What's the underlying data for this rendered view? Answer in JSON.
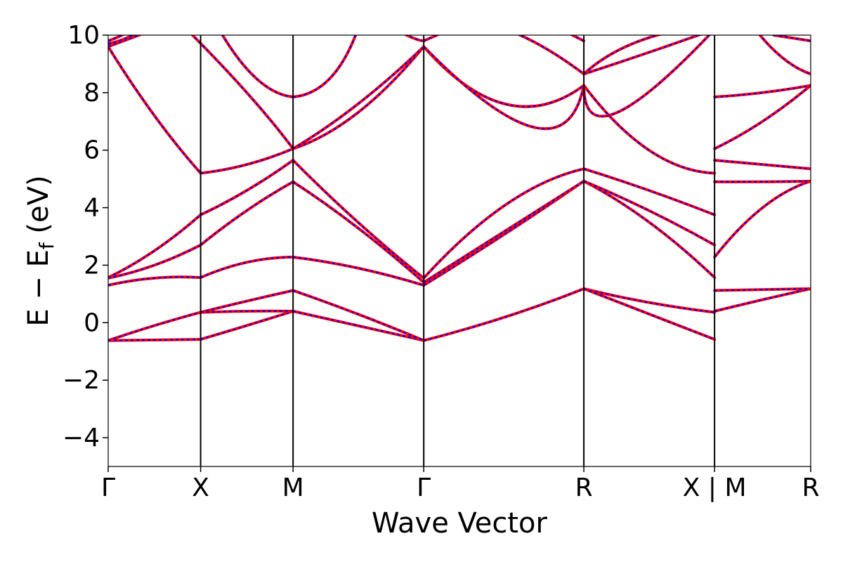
{
  "chart_data": {
    "type": "line",
    "xlabel": "Wave Vector",
    "ylabel": "E − E",
    "ylabel_subscript": "f",
    "ylabel_unit": " (eV)",
    "ylim": [
      -5,
      10
    ],
    "yticks": [
      -4,
      -2,
      0,
      2,
      4,
      6,
      8,
      10
    ],
    "ytick_labels": [
      "−4",
      "−2",
      "0",
      "2",
      "4",
      "6",
      "8",
      "10"
    ],
    "xlim": [
      0,
      7.6
    ],
    "kpoints": [
      {
        "label": "Γ",
        "x": 0.0
      },
      {
        "label": "X",
        "x": 1.0
      },
      {
        "label": "M",
        "x": 2.0
      },
      {
        "label": "Γ",
        "x": 3.414
      },
      {
        "label": "R",
        "x": 5.146
      },
      {
        "label": "X | M",
        "x": 6.56
      },
      {
        "label": "R",
        "x": 7.6
      }
    ],
    "grid": false,
    "colors": {
      "band_solid": "#ff0000",
      "band_dashed": "#0000ff",
      "axis": "#000000"
    },
    "series_style": "each band drawn as solid red line overlaid with dashed blue line",
    "bands": [
      {
        "segment": "Γ-X",
        "points": [
          [
            0,
            -0.62
          ],
          [
            0.5,
            -0.6
          ],
          [
            1.0,
            -0.58
          ]
        ]
      },
      {
        "segment": "Γ-X",
        "points": [
          [
            0,
            -0.62
          ],
          [
            0.5,
            -0.1
          ],
          [
            1.0,
            0.36
          ]
        ]
      },
      {
        "segment": "Γ-X",
        "points": [
          [
            0,
            1.3
          ],
          [
            0.5,
            1.55
          ],
          [
            1.0,
            1.57
          ]
        ]
      },
      {
        "segment": "Γ-X",
        "points": [
          [
            0,
            1.55
          ],
          [
            0.5,
            2.0
          ],
          [
            1.0,
            2.7
          ]
        ]
      },
      {
        "segment": "Γ-X",
        "points": [
          [
            0,
            1.57
          ],
          [
            0.5,
            2.5
          ],
          [
            1.0,
            3.75
          ]
        ]
      },
      {
        "segment": "Γ-X",
        "points": [
          [
            0,
            9.6
          ],
          [
            0.5,
            7.2
          ],
          [
            1.0,
            5.2
          ]
        ]
      },
      {
        "segment": "Γ-X",
        "points": [
          [
            0,
            9.6
          ],
          [
            0.25,
            9.9
          ],
          [
            0.5,
            10.2
          ]
        ]
      },
      {
        "segment": "Γ-X",
        "points": [
          [
            0,
            9.7
          ],
          [
            0.2,
            9.9
          ],
          [
            0.35,
            10.2
          ]
        ]
      },
      {
        "segment": "Γ-X",
        "points": [
          [
            0,
            9.8
          ],
          [
            0.15,
            10.0
          ],
          [
            0.25,
            10.2
          ]
        ]
      },
      {
        "segment": "X-M",
        "points": [
          [
            1.0,
            -0.58
          ],
          [
            1.5,
            -0.1
          ],
          [
            2.0,
            0.4
          ]
        ]
      },
      {
        "segment": "X-M",
        "points": [
          [
            1.0,
            0.36
          ],
          [
            1.5,
            0.4
          ],
          [
            2.0,
            0.4
          ]
        ]
      },
      {
        "segment": "X-M",
        "points": [
          [
            1.0,
            0.36
          ],
          [
            1.5,
            0.75
          ],
          [
            2.0,
            1.12
          ]
        ]
      },
      {
        "segment": "X-M",
        "points": [
          [
            1.0,
            1.57
          ],
          [
            1.5,
            2.1
          ],
          [
            2.0,
            2.28
          ]
        ]
      },
      {
        "segment": "X-M",
        "points": [
          [
            1.0,
            2.7
          ],
          [
            1.5,
            3.9
          ],
          [
            2.0,
            4.9
          ]
        ]
      },
      {
        "segment": "X-M",
        "points": [
          [
            1.0,
            3.75
          ],
          [
            1.5,
            4.6
          ],
          [
            2.0,
            5.65
          ]
        ]
      },
      {
        "segment": "X-M",
        "points": [
          [
            1.0,
            5.2
          ],
          [
            1.5,
            5.5
          ],
          [
            2.0,
            6.05
          ]
        ]
      },
      {
        "segment": "X-M",
        "points": [
          [
            0.85,
            10.2
          ],
          [
            1.5,
            8.0
          ],
          [
            2.0,
            6.05
          ]
        ]
      },
      {
        "segment": "X-M",
        "points": [
          [
            1.2,
            10.2
          ],
          [
            1.6,
            8.5
          ],
          [
            2.0,
            7.85
          ]
        ]
      },
      {
        "segment": "X-M",
        "points": [
          [
            2.0,
            7.85
          ],
          [
            2.4,
            8.5
          ],
          [
            2.7,
            10.2
          ]
        ]
      },
      {
        "segment": "M-Γ",
        "points": [
          [
            2.0,
            0.4
          ],
          [
            2.7,
            -0.1
          ],
          [
            3.414,
            -0.62
          ]
        ]
      },
      {
        "segment": "M-Γ",
        "points": [
          [
            2.0,
            1.12
          ],
          [
            2.7,
            0.3
          ],
          [
            3.414,
            -0.62
          ]
        ]
      },
      {
        "segment": "M-Γ",
        "points": [
          [
            2.0,
            2.28
          ],
          [
            2.7,
            1.9
          ],
          [
            3.414,
            1.3
          ]
        ]
      },
      {
        "segment": "M-Γ",
        "points": [
          [
            2.0,
            4.9
          ],
          [
            2.7,
            3.3
          ],
          [
            3.414,
            1.4
          ]
        ]
      },
      {
        "segment": "M-Γ",
        "points": [
          [
            2.0,
            5.65
          ],
          [
            2.7,
            3.5
          ],
          [
            3.414,
            1.55
          ]
        ]
      },
      {
        "segment": "M-Γ",
        "points": [
          [
            2.0,
            6.05
          ],
          [
            2.7,
            7.3
          ],
          [
            3.414,
            9.6
          ]
        ]
      },
      {
        "segment": "M-Γ",
        "points": [
          [
            2.0,
            6.05
          ],
          [
            2.7,
            7.6
          ],
          [
            3.414,
            9.6
          ]
        ]
      },
      {
        "segment": "M-Γ",
        "points": [
          [
            3.1,
            10.2
          ],
          [
            3.3,
            9.9
          ],
          [
            3.414,
            9.8
          ]
        ]
      },
      {
        "segment": "Γ-R",
        "points": [
          [
            3.414,
            -0.62
          ],
          [
            4.3,
            0.2
          ],
          [
            5.146,
            1.18
          ]
        ]
      },
      {
        "segment": "Γ-R",
        "points": [
          [
            3.414,
            1.3
          ],
          [
            4.3,
            3.1
          ],
          [
            5.146,
            4.92
          ]
        ]
      },
      {
        "segment": "Γ-R",
        "points": [
          [
            3.414,
            1.4
          ],
          [
            4.3,
            3.2
          ],
          [
            5.146,
            4.92
          ]
        ]
      },
      {
        "segment": "Γ-R",
        "points": [
          [
            3.414,
            1.55
          ],
          [
            4.3,
            4.1
          ],
          [
            5.146,
            5.35
          ]
        ]
      },
      {
        "segment": "Γ-R",
        "points": [
          [
            3.414,
            9.6
          ],
          [
            4.3,
            7.6
          ],
          [
            5.146,
            8.25
          ]
        ]
      },
      {
        "segment": "Γ-R",
        "points": [
          [
            3.414,
            9.6
          ],
          [
            4.6,
            6.8
          ],
          [
            5.146,
            8.25
          ]
        ]
      },
      {
        "segment": "Γ-R",
        "points": [
          [
            3.414,
            9.8
          ],
          [
            3.7,
            10.2
          ]
        ]
      },
      {
        "segment": "Γ-R",
        "points": [
          [
            4.3,
            10.2
          ],
          [
            4.7,
            9.6
          ],
          [
            5.146,
            8.65
          ]
        ]
      },
      {
        "segment": "Γ-R",
        "points": [
          [
            4.9,
            10.2
          ],
          [
            5.146,
            9.8
          ]
        ]
      },
      {
        "segment": "R-X",
        "points": [
          [
            5.146,
            1.18
          ],
          [
            5.85,
            0.7
          ],
          [
            6.56,
            0.36
          ]
        ]
      },
      {
        "segment": "R-X",
        "points": [
          [
            5.146,
            1.18
          ],
          [
            5.85,
            0.3
          ],
          [
            6.56,
            -0.58
          ]
        ]
      },
      {
        "segment": "R-X",
        "points": [
          [
            5.146,
            4.92
          ],
          [
            5.85,
            3.5
          ],
          [
            6.56,
            1.57
          ]
        ]
      },
      {
        "segment": "R-X",
        "points": [
          [
            5.146,
            4.92
          ],
          [
            5.85,
            3.9
          ],
          [
            6.56,
            2.7
          ]
        ]
      },
      {
        "segment": "R-X",
        "points": [
          [
            5.146,
            5.35
          ],
          [
            5.85,
            4.6
          ],
          [
            6.56,
            3.75
          ]
        ]
      },
      {
        "segment": "R-X",
        "points": [
          [
            5.146,
            8.25
          ],
          [
            5.85,
            6.0
          ],
          [
            6.56,
            5.2
          ]
        ]
      },
      {
        "segment": "R-X",
        "points": [
          [
            5.146,
            8.25
          ],
          [
            5.5,
            7.3
          ],
          [
            6.56,
            10.2
          ]
        ]
      },
      {
        "segment": "R-X",
        "points": [
          [
            5.146,
            8.65
          ],
          [
            5.85,
            9.4
          ],
          [
            6.56,
            10.2
          ]
        ]
      },
      {
        "segment": "R-X",
        "points": [
          [
            5.146,
            8.65
          ],
          [
            5.6,
            9.6
          ],
          [
            6.2,
            10.2
          ]
        ]
      },
      {
        "segment": "M-R",
        "points": [
          [
            6.56,
            0.4
          ],
          [
            7.08,
            0.8
          ],
          [
            7.6,
            1.18
          ]
        ]
      },
      {
        "segment": "M-R",
        "points": [
          [
            6.56,
            1.12
          ],
          [
            7.08,
            1.15
          ],
          [
            7.6,
            1.18
          ]
        ]
      },
      {
        "segment": "M-R",
        "points": [
          [
            6.56,
            2.28
          ],
          [
            7.08,
            4.0
          ],
          [
            7.6,
            4.92
          ]
        ]
      },
      {
        "segment": "M-R",
        "points": [
          [
            6.56,
            4.9
          ],
          [
            7.08,
            4.9
          ],
          [
            7.6,
            4.92
          ]
        ]
      },
      {
        "segment": "M-R",
        "points": [
          [
            6.56,
            5.65
          ],
          [
            7.08,
            5.5
          ],
          [
            7.6,
            5.35
          ]
        ]
      },
      {
        "segment": "M-R",
        "points": [
          [
            6.56,
            6.05
          ],
          [
            7.08,
            7.0
          ],
          [
            7.6,
            8.25
          ]
        ]
      },
      {
        "segment": "M-R",
        "points": [
          [
            6.56,
            7.85
          ],
          [
            7.08,
            8.0
          ],
          [
            7.6,
            8.25
          ]
        ]
      },
      {
        "segment": "M-R",
        "points": [
          [
            7.0,
            10.2
          ],
          [
            7.3,
            9.2
          ],
          [
            7.6,
            8.65
          ]
        ]
      },
      {
        "segment": "M-R",
        "points": [
          [
            7.2,
            10.0
          ],
          [
            7.6,
            9.8
          ]
        ]
      }
    ]
  }
}
